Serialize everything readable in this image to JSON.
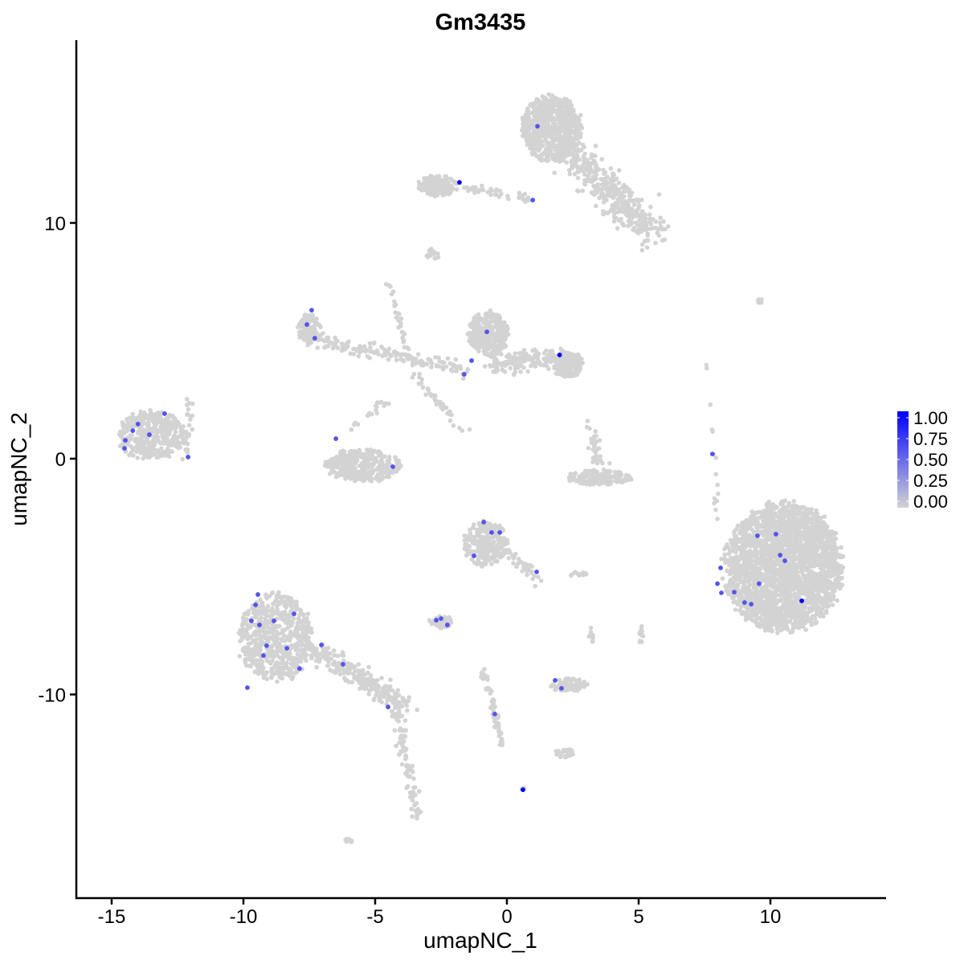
{
  "chart_data": {
    "type": "scatter",
    "title": "Gm3435",
    "xlabel": "umapNC_1",
    "ylabel": "umapNC_2",
    "xlim": [
      -16.4,
      14.3
    ],
    "ylim": [
      -18.5,
      17.7
    ],
    "xticks": [
      -15,
      -10,
      -5,
      0,
      5,
      10
    ],
    "yticks": [
      -10,
      0,
      10
    ],
    "grid": false,
    "legend": {
      "placement": "right",
      "ticks": [
        "1.00",
        "0.75",
        "0.50",
        "0.25",
        "0.00"
      ],
      "low_color": "#D3D3D3",
      "high_color": "#0000FF"
    },
    "background_groups": [
      {
        "type": "blob",
        "cx": 10.5,
        "cy": -4.6,
        "rx": 2.4,
        "ry": 2.9,
        "n": 2500
      },
      {
        "type": "blob",
        "cx": 1.7,
        "cy": 14.0,
        "rx": 1.2,
        "ry": 1.5,
        "n": 700
      },
      {
        "type": "stream",
        "from": [
          2.4,
          13.0
        ],
        "to": [
          5.6,
          9.5
        ],
        "w": 0.7,
        "n": 380
      },
      {
        "type": "blob",
        "cx": -2.6,
        "cy": 11.6,
        "rx": 0.8,
        "ry": 0.5,
        "n": 160
      },
      {
        "type": "stream",
        "from": [
          -1.6,
          11.5
        ],
        "to": [
          0.9,
          11.0
        ],
        "w": 0.15,
        "n": 45
      },
      {
        "type": "blob",
        "cx": -2.8,
        "cy": 8.7,
        "rx": 0.3,
        "ry": 0.25,
        "n": 15
      },
      {
        "type": "blob",
        "cx": -0.7,
        "cy": 5.3,
        "rx": 0.8,
        "ry": 1.0,
        "n": 320
      },
      {
        "type": "blob",
        "cx": 2.3,
        "cy": 4.0,
        "rx": 0.6,
        "ry": 0.6,
        "n": 220
      },
      {
        "type": "stream",
        "from": [
          -0.8,
          4.0
        ],
        "to": [
          2.0,
          4.3
        ],
        "w": 0.4,
        "n": 150
      },
      {
        "type": "blob",
        "cx": -7.5,
        "cy": 5.5,
        "rx": 0.45,
        "ry": 0.7,
        "n": 110
      },
      {
        "type": "stream",
        "from": [
          -7.2,
          5.0
        ],
        "to": [
          -1.5,
          3.8
        ],
        "w": 0.3,
        "n": 150
      },
      {
        "type": "stream",
        "from": [
          -4.5,
          7.5
        ],
        "to": [
          -3.5,
          3.5
        ],
        "w": 0.1,
        "n": 40
      },
      {
        "type": "stream",
        "from": [
          -3.5,
          3.5
        ],
        "to": [
          -1.5,
          1.0
        ],
        "w": 0.15,
        "n": 35
      },
      {
        "type": "stream",
        "from": [
          -4.5,
          2.5
        ],
        "to": [
          -6,
          1.2
        ],
        "w": 0.15,
        "n": 20
      },
      {
        "type": "blob",
        "cx": -13.5,
        "cy": 1.0,
        "rx": 1.4,
        "ry": 1.1,
        "n": 380
      },
      {
        "type": "stream",
        "from": [
          -12.0,
          2.7
        ],
        "to": [
          -12.2,
          0.0
        ],
        "w": 0.2,
        "n": 25
      },
      {
        "type": "blob",
        "cx": -5.5,
        "cy": -0.3,
        "rx": 1.5,
        "ry": 0.75,
        "n": 360
      },
      {
        "type": "blob",
        "cx": -0.8,
        "cy": -3.6,
        "rx": 0.9,
        "ry": 1.0,
        "n": 260
      },
      {
        "type": "stream",
        "from": [
          0.0,
          -3.8
        ],
        "to": [
          1.3,
          -5.3
        ],
        "w": 0.25,
        "n": 40
      },
      {
        "type": "blob",
        "cx": -8.8,
        "cy": -7.6,
        "rx": 1.5,
        "ry": 2.0,
        "n": 620
      },
      {
        "type": "stream",
        "from": [
          -7.5,
          -8.0
        ],
        "to": [
          -3.8,
          -10.5
        ],
        "w": 0.4,
        "n": 260
      },
      {
        "type": "stream",
        "from": [
          -4.2,
          -10.6
        ],
        "to": [
          -3.4,
          -15.2
        ],
        "w": 0.2,
        "n": 90
      },
      {
        "type": "blob",
        "cx": 3.5,
        "cy": -0.8,
        "rx": 1.3,
        "ry": 0.35,
        "n": 160
      },
      {
        "type": "stream",
        "from": [
          3.2,
          1.5
        ],
        "to": [
          3.5,
          -0.3
        ],
        "w": 0.2,
        "n": 35
      },
      {
        "type": "blob",
        "cx": -2.5,
        "cy": -6.9,
        "rx": 0.5,
        "ry": 0.3,
        "n": 55
      },
      {
        "type": "blob",
        "cx": 2.3,
        "cy": -9.6,
        "rx": 0.8,
        "ry": 0.3,
        "n": 85
      },
      {
        "type": "stream",
        "from": [
          -0.9,
          -9.0
        ],
        "to": [
          -0.2,
          -12.1
        ],
        "w": 0.15,
        "n": 60
      },
      {
        "type": "blob",
        "cx": 2.2,
        "cy": -12.5,
        "rx": 0.4,
        "ry": 0.2,
        "n": 25
      },
      {
        "type": "blob",
        "cx": 2.7,
        "cy": -4.9,
        "rx": 0.4,
        "ry": 0.1,
        "n": 15
      },
      {
        "type": "stream",
        "from": [
          7.6,
          4.8
        ],
        "to": [
          8.0,
          -2.5
        ],
        "w": 0.1,
        "n": 15
      },
      {
        "type": "blob",
        "cx": 9.6,
        "cy": 6.7,
        "rx": 0.25,
        "ry": 0.1,
        "n": 6
      },
      {
        "type": "blob",
        "cx": 5.1,
        "cy": -7.5,
        "rx": 0.1,
        "ry": 0.4,
        "n": 10
      },
      {
        "type": "blob",
        "cx": 3.2,
        "cy": -7.5,
        "rx": 0.1,
        "ry": 0.4,
        "n": 8
      },
      {
        "type": "blob",
        "cx": -6.0,
        "cy": -16.2,
        "rx": 0.2,
        "ry": 0.1,
        "n": 8
      },
      {
        "type": "blob",
        "cx": 0.6,
        "cy": -14.0,
        "rx": 0.1,
        "ry": 0.1,
        "n": 3
      }
    ],
    "expressed_points": [
      {
        "x": -1.8,
        "y": 11.72,
        "v": 1.0
      },
      {
        "x": 1.16,
        "y": 14.1,
        "v": 0.6
      },
      {
        "x": 0.98,
        "y": 10.97,
        "v": 0.6
      },
      {
        "x": 2.0,
        "y": 4.4,
        "v": 1.0
      },
      {
        "x": -0.76,
        "y": 5.38,
        "v": 0.6
      },
      {
        "x": -1.34,
        "y": 4.16,
        "v": 0.6
      },
      {
        "x": -1.62,
        "y": 3.58,
        "v": 0.6
      },
      {
        "x": -7.41,
        "y": 6.3,
        "v": 0.6
      },
      {
        "x": -7.59,
        "y": 5.69,
        "v": 0.6
      },
      {
        "x": -7.29,
        "y": 5.11,
        "v": 0.6
      },
      {
        "x": -6.49,
        "y": 0.85,
        "v": 0.6
      },
      {
        "x": -4.33,
        "y": -0.34,
        "v": 0.6
      },
      {
        "x": -12.99,
        "y": 1.91,
        "v": 0.6
      },
      {
        "x": -14.0,
        "y": 1.47,
        "v": 0.6
      },
      {
        "x": -14.2,
        "y": 1.19,
        "v": 0.6
      },
      {
        "x": -14.48,
        "y": 0.78,
        "v": 0.6
      },
      {
        "x": -14.51,
        "y": 0.44,
        "v": 0.6
      },
      {
        "x": -13.57,
        "y": 1.02,
        "v": 0.6
      },
      {
        "x": -12.1,
        "y": 0.07,
        "v": 0.6
      },
      {
        "x": 7.8,
        "y": 0.2,
        "v": 0.6
      },
      {
        "x": -0.88,
        "y": -2.69,
        "v": 0.6
      },
      {
        "x": -0.58,
        "y": -3.13,
        "v": 0.6
      },
      {
        "x": -0.27,
        "y": -3.13,
        "v": 0.6
      },
      {
        "x": -1.25,
        "y": -4.12,
        "v": 0.6
      },
      {
        "x": 1.13,
        "y": -4.8,
        "v": 0.6
      },
      {
        "x": -2.5,
        "y": -6.78,
        "v": 0.6
      },
      {
        "x": -2.68,
        "y": -6.85,
        "v": 0.6
      },
      {
        "x": -2.26,
        "y": -7.05,
        "v": 0.6
      },
      {
        "x": -9.45,
        "y": -5.76,
        "v": 0.6
      },
      {
        "x": -9.54,
        "y": -6.2,
        "v": 0.6
      },
      {
        "x": -9.7,
        "y": -6.88,
        "v": 0.6
      },
      {
        "x": -9.39,
        "y": -7.05,
        "v": 0.6
      },
      {
        "x": -8.84,
        "y": -6.88,
        "v": 0.6
      },
      {
        "x": -8.08,
        "y": -6.58,
        "v": 0.6
      },
      {
        "x": -9.12,
        "y": -7.93,
        "v": 0.6
      },
      {
        "x": -9.24,
        "y": -8.35,
        "v": 0.6
      },
      {
        "x": -8.35,
        "y": -8.04,
        "v": 0.6
      },
      {
        "x": -7.04,
        "y": -7.9,
        "v": 0.6
      },
      {
        "x": -7.87,
        "y": -8.9,
        "v": 0.6
      },
      {
        "x": -6.22,
        "y": -8.72,
        "v": 0.6
      },
      {
        "x": -9.85,
        "y": -9.71,
        "v": 0.6
      },
      {
        "x": -4.51,
        "y": -10.53,
        "v": 0.6
      },
      {
        "x": 1.83,
        "y": -9.4,
        "v": 0.6
      },
      {
        "x": 2.07,
        "y": -9.74,
        "v": 0.6
      },
      {
        "x": -0.46,
        "y": -10.83,
        "v": 0.6
      },
      {
        "x": 0.61,
        "y": -14.04,
        "v": 1.0
      },
      {
        "x": 8.11,
        "y": -4.63,
        "v": 0.6
      },
      {
        "x": 7.99,
        "y": -5.3,
        "v": 0.6
      },
      {
        "x": 8.14,
        "y": -5.69,
        "v": 0.6
      },
      {
        "x": 8.63,
        "y": -5.66,
        "v": 0.6
      },
      {
        "x": 9.02,
        "y": -6.1,
        "v": 0.6
      },
      {
        "x": 9.27,
        "y": -6.17,
        "v": 0.6
      },
      {
        "x": 9.57,
        "y": -5.3,
        "v": 0.6
      },
      {
        "x": 9.51,
        "y": -3.27,
        "v": 0.6
      },
      {
        "x": 10.21,
        "y": -3.2,
        "v": 0.6
      },
      {
        "x": 10.37,
        "y": -4.09,
        "v": 0.6
      },
      {
        "x": 10.55,
        "y": -4.33,
        "v": 0.6
      },
      {
        "x": 11.19,
        "y": -6.03,
        "v": 1.0
      }
    ]
  }
}
